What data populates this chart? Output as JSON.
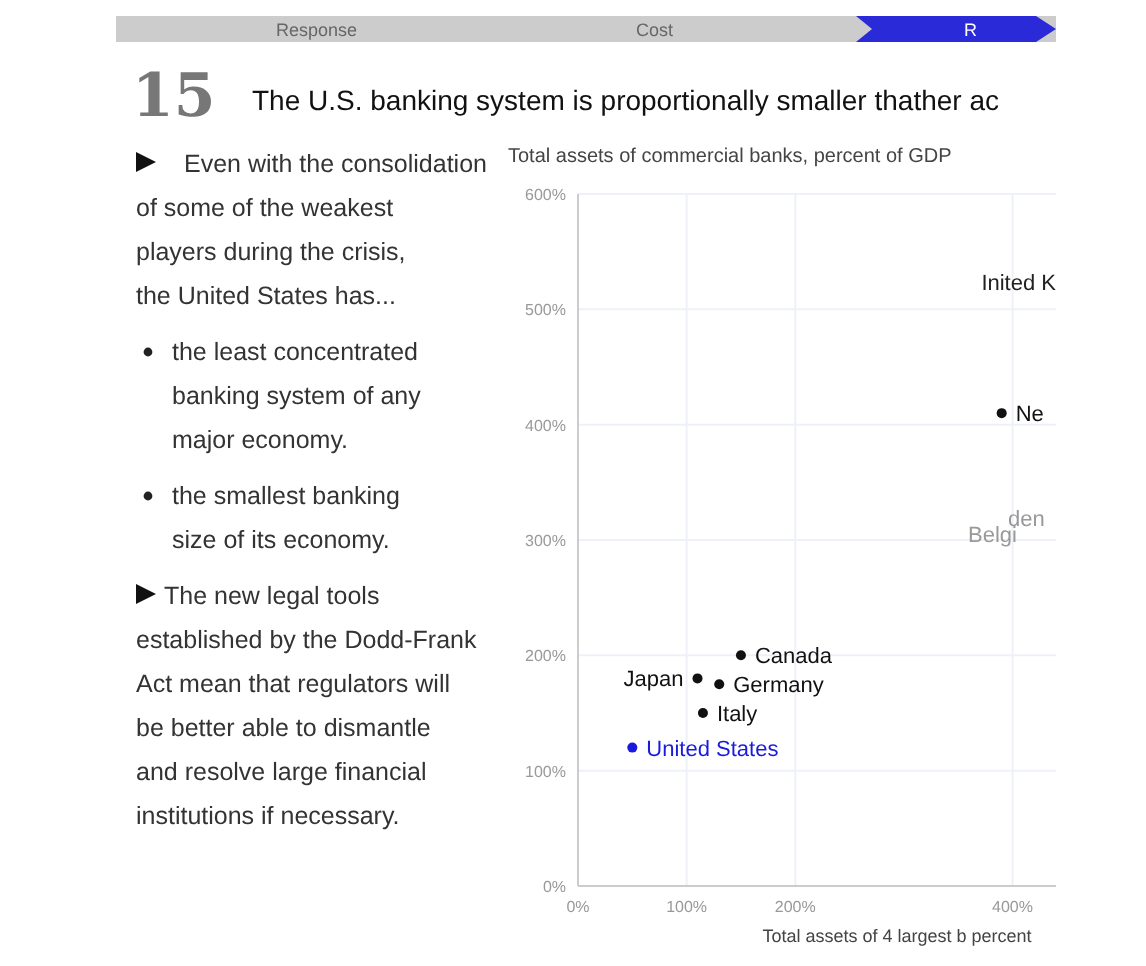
{
  "chart_data": {
    "type": "scatter",
    "title": "The U.S. banking system is proportionally smaller thather ac",
    "ylabel": "Total assets of commercial banks, percent of GDP",
    "xlabel": "Total assets of 4 largest b percent",
    "annotations": [
      "Response",
      "Cost",
      "R",
      "15",
      "Even with the consolidation of some of the weakest players during the crisis, the United States has...",
      "the least concentrated banking system of any major economy.",
      "the smallest banking size of its economy.",
      "The new legal tools established by the Dodd-Frank Act mean that regulators will be better able to dismantle and resolve large financial institutions if necessary.",
      "Inited K",
      "Belgi",
      "den"
    ],
    "x": [
      50,
      115,
      110,
      130,
      150,
      390
    ],
    "values": [
      120,
      150,
      180,
      175,
      200,
      410
    ],
    "colors": [
      "#1a1adc",
      "#111111",
      "#111111",
      "#111111",
      "#111111",
      "#111111"
    ],
    "value_labels": [
      "United States",
      "Italy",
      "Japan",
      "Germany",
      "Canada",
      "Ne"
    ],
    "xlim": [
      0,
      440
    ],
    "ylim": [
      0,
      600
    ],
    "xticks": [
      {
        "value": 0,
        "label": "0%"
      },
      {
        "value": 100,
        "label": "100%"
      },
      {
        "value": 200,
        "label": "200%"
      },
      {
        "value": 400,
        "label": "400%"
      }
    ],
    "yticks": [
      {
        "value": 0,
        "label": "0%"
      },
      {
        "value": 100,
        "label": "100%"
      },
      {
        "value": 200,
        "label": "200%"
      },
      {
        "value": 300,
        "label": "300%"
      },
      {
        "value": 400,
        "label": "400%"
      },
      {
        "value": 500,
        "label": "500%"
      },
      {
        "value": 600,
        "label": "600%"
      }
    ],
    "grid": true,
    "marker": "circle"
  }
}
